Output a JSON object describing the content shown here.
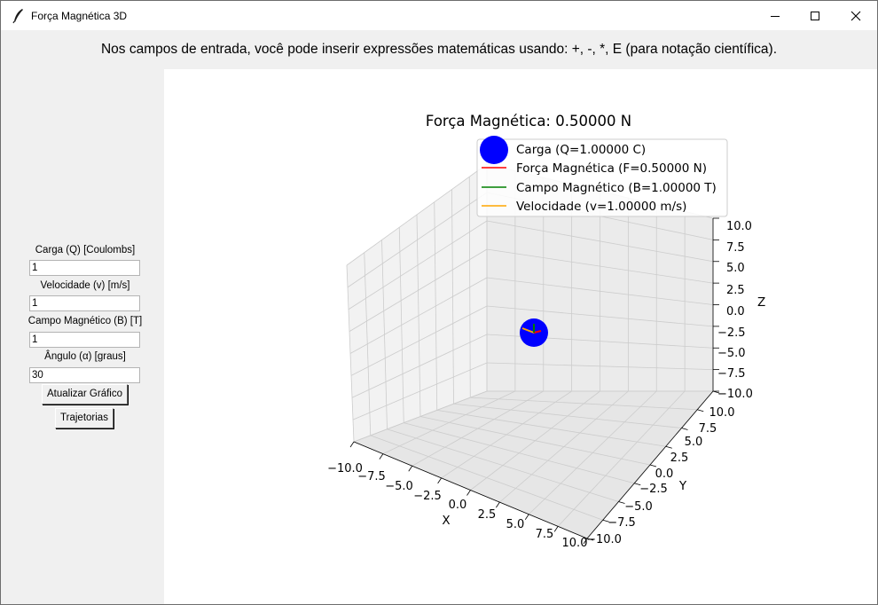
{
  "window": {
    "title": "Força Magnética 3D",
    "controls": [
      "minimize",
      "maximize",
      "close"
    ]
  },
  "info": {
    "text": "Nos campos de entrada, você pode inserir expressões matemáticas usando: +, -, *, E (para notação científica)."
  },
  "sidebar": {
    "charge_label": "Carga (Q) [Coulombs]",
    "charge_value": "1",
    "velocity_label": "Velocidade (v) [m/s]",
    "velocity_value": "1",
    "field_label": "Campo Magnético (B) [T]",
    "field_value": "1",
    "angle_label": "Ângulo (α) [graus]",
    "angle_value": "30",
    "update_button": "Atualizar Gráfico",
    "trajectories_button": "Trajetorias"
  },
  "plot": {
    "title": "Força Magnética: 0.50000 N",
    "legend": [
      {
        "label": "Carga (Q=1.00000 C)",
        "color": "#0000ff",
        "marker": "circle"
      },
      {
        "label": "Força Magnética (F=0.50000 N)",
        "color": "#ff0000",
        "marker": "line"
      },
      {
        "label": "Campo Magnético (B=1.00000 T)",
        "color": "#008000",
        "marker": "line"
      },
      {
        "label": "Velocidade (v=1.00000 m/s)",
        "color": "#ffa500",
        "marker": "line"
      }
    ],
    "x_axis": {
      "label": "X",
      "ticks": [
        "−10.0",
        "−7.5",
        "−5.0",
        "−2.5",
        "0.0",
        "2.5",
        "5.0",
        "7.5",
        "10.0"
      ]
    },
    "y_axis": {
      "label": "Y",
      "ticks": [
        "−10.0",
        "−7.5",
        "−5.0",
        "−2.5",
        "0.0",
        "2.5",
        "5.0",
        "7.5",
        "10.0"
      ]
    },
    "z_axis": {
      "label": "Z",
      "ticks": [
        "10.0",
        "7.5",
        "5.0",
        "2.5",
        "0.0",
        "−2.5",
        "−5.0",
        "−7.5",
        "−10.0"
      ]
    }
  }
}
